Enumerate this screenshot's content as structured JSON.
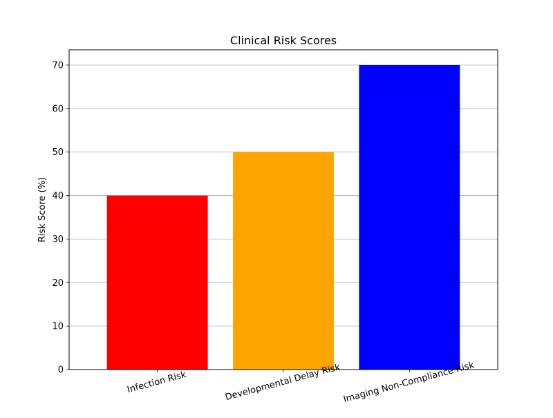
{
  "chart_data": {
    "type": "bar",
    "title": "Clinical Risk Scores",
    "xlabel": "",
    "ylabel": "Risk Score (%)",
    "categories": [
      "Infection Risk",
      "Developmental Delay Risk",
      "Imaging Non-Compliance Risk"
    ],
    "values": [
      40,
      50,
      70
    ],
    "colors": [
      "#ff0000",
      "#ffa500",
      "#0000ff"
    ],
    "ylim": [
      0,
      73.5
    ],
    "yticks": [
      0,
      10,
      20,
      30,
      40,
      50,
      60,
      70
    ],
    "ytick_labels": [
      "0",
      "10",
      "20",
      "30",
      "40",
      "50",
      "60",
      "70"
    ],
    "grid": "y-axis only",
    "xtick_rotation": 15
  }
}
